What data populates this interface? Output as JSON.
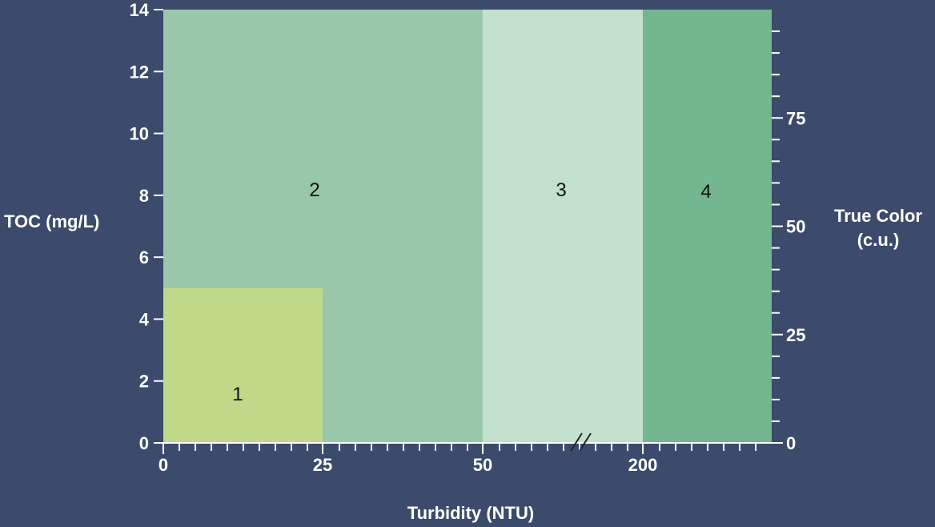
{
  "chart_data": {
    "type": "area",
    "xlabel": "Turbidity (NTU)",
    "ylabel": "TOC (mg/L)",
    "y2label": [
      "True Color",
      "(c.u.)"
    ],
    "x_ticks": [
      "0",
      "25",
      "50",
      "200"
    ],
    "x_axis_break": "between 50 and 200",
    "ylim": [
      0,
      14
    ],
    "y_ticks": [
      "0",
      "2",
      "4",
      "6",
      "8",
      "10",
      "12",
      "14"
    ],
    "y2lim": [
      0,
      100
    ],
    "y2_ticks": [
      "0",
      "25",
      "50",
      "75"
    ],
    "regions": [
      {
        "label": "2",
        "x_range": [
          "0",
          "50"
        ],
        "toc_range": [
          0,
          14
        ],
        "color": "#98c7a9"
      },
      {
        "label": "3",
        "x_range": [
          "50",
          "200"
        ],
        "toc_range": [
          0,
          14
        ],
        "color": "#c2e0cc"
      },
      {
        "label": "4",
        "x_range": [
          "200",
          ">200"
        ],
        "toc_range": [
          0,
          14
        ],
        "color": "#74b690"
      },
      {
        "label": "1",
        "x_range": [
          "0",
          "25"
        ],
        "toc_range": [
          0,
          5
        ],
        "color": "#bfd988"
      }
    ],
    "colors": {
      "background": "#3c4a6b",
      "axis": "#ffffff"
    }
  }
}
